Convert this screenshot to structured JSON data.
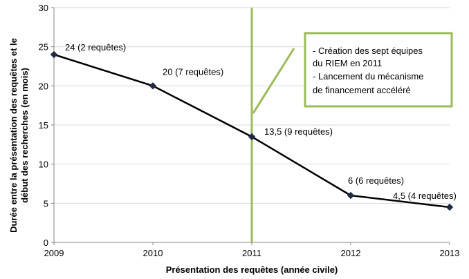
{
  "chart_data": {
    "type": "line",
    "x": [
      2009,
      2010,
      2011,
      2012,
      2013
    ],
    "xticks": [
      "2009",
      "2010",
      "2011",
      "2012",
      "2013"
    ],
    "y": [
      24,
      20,
      13.5,
      6,
      4.5
    ],
    "data_labels": [
      "24 (2 requêtes)",
      "20 (7 requêtes)",
      "13,5 (9 requêtes)",
      "6 (6 requêtes)",
      "4,5 (4 requêtes)"
    ],
    "ylim": [
      0,
      30
    ],
    "yticks": [
      "0",
      "5",
      "10",
      "15",
      "20",
      "25",
      "30"
    ],
    "xlabel": "Présentation des requêtes (année civile)",
    "ylabel_lines": [
      "Durée entre la présentation des requêtes et le",
      "début des recherches (en mois)"
    ],
    "grid": "horizontal",
    "reference_line": {
      "x": 2011,
      "color": "#9BBB59"
    },
    "annotation": {
      "lines": [
        "- Création des sept équipes",
        "du RIEM en 2011",
        "- Lancement du mécanisme",
        "de financement accéléré"
      ],
      "border_color": "#9BBB59"
    },
    "series_color": "#000000",
    "grid_color": "#d9d9d9"
  }
}
